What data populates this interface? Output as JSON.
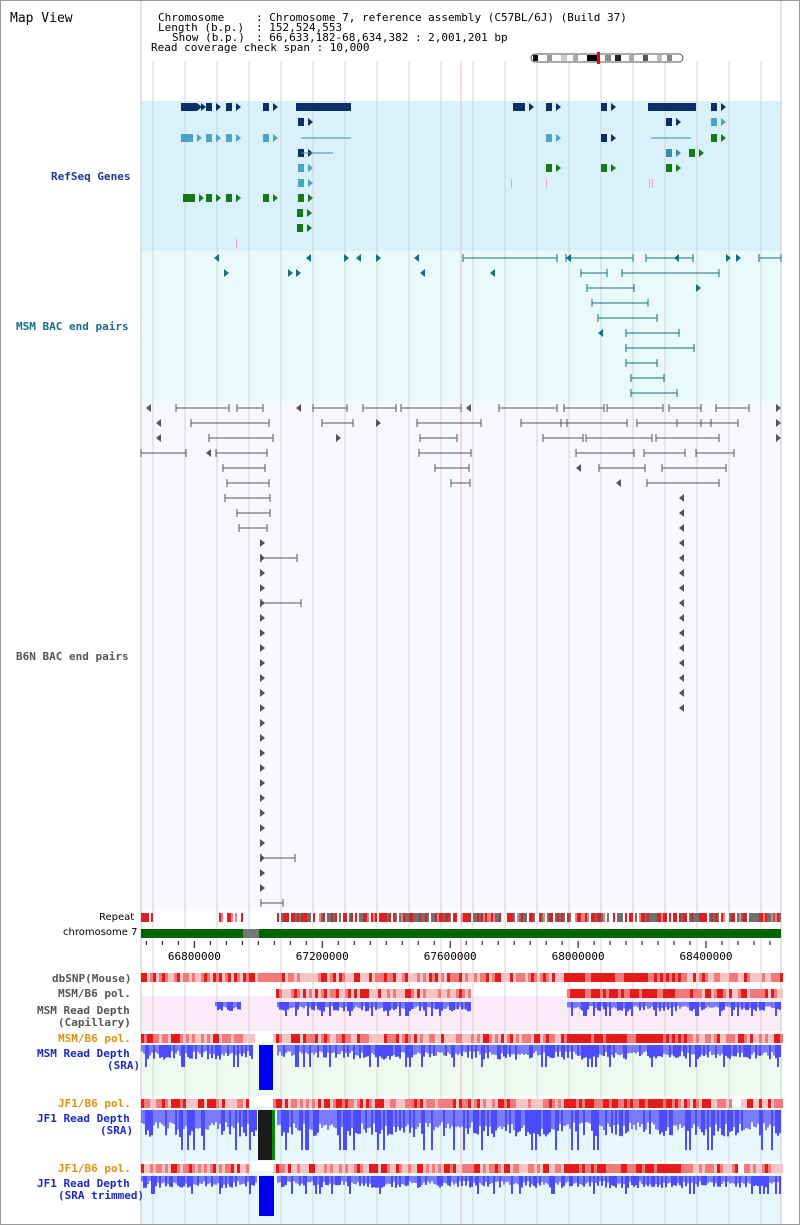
{
  "title": "Map View",
  "info": {
    "chromosome_key": "Chromosome",
    "chromosome_value": ": Chromosome 7, reference assembly (C57BL/6J) (Build 37)",
    "length_key": "Length (b.p.)",
    "length_value": ": 152,524,553",
    "show_key": "Show (b.p.)",
    "show_value": ": 66,633,182-68,634,382 : 2,001,201 bp",
    "coverage_line": "Read coverage check span : 10,000"
  },
  "tracks": {
    "refseq": "RefSeq Genes",
    "msm_bac": "MSM BAC end pairs",
    "b6n_bac": "B6N BAC end pairs",
    "repeat": "Repeat",
    "chromosome": "chromosome 7",
    "dbsnp": "dbSNP(Mouse)",
    "msm_b6_pol_1": "MSM/B6 pol.",
    "msm_depth_cap_1": "MSM Read Depth",
    "msm_depth_cap_2": "(Capillary)",
    "msm_b6_pol_2": "MSM/B6 pol.",
    "msm_depth_sra_1": "MSM Read Depth",
    "msm_depth_sra_2": "(SRA)",
    "jf1_b6_pol_1": "JF1/B6 pol.",
    "jf1_depth_sra_1": "JF1 Read Depth",
    "jf1_depth_sra_2": "(SRA)",
    "jf1_b6_pol_2": "JF1/B6 pol.",
    "jf1_depth_trim_1": "JF1 Read Depth",
    "jf1_depth_trim_2": "(SRA trimmed)"
  },
  "axis": {
    "ticks": [
      "66800000",
      "67200000",
      "67600000",
      "68000000",
      "68400000"
    ],
    "tick_values": [
      66800000,
      67200000,
      67600000,
      68000000,
      68400000
    ],
    "start": 66633182,
    "end": 68634382
  },
  "colors": {
    "refseq_bg": "#d9f1fb",
    "msm_bg": "#e9fafa",
    "b6n_bg": "#f7f9fd",
    "gene_dark": "#0b2f6a",
    "gene_mid": "#3a8ab5",
    "gene_light": "#4aa3c8",
    "gene_green": "#157a15",
    "msm_pair": "#146e86",
    "b6n_pair": "#555555",
    "chrom": "#006400",
    "snp": "#e83030",
    "depth": "#4040ff"
  }
}
